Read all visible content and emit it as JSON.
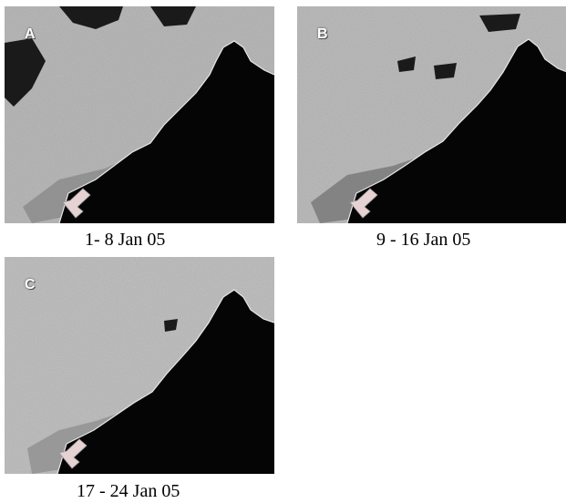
{
  "panels": [
    {
      "id": "A",
      "caption": "1- 8 Jan 05"
    },
    {
      "id": "B",
      "caption": "9 - 16 Jan 05"
    },
    {
      "id": "C",
      "caption": "17 - 24 Jan 05"
    }
  ],
  "colors": {
    "sea": "#b9b9b9",
    "land": "#050505",
    "cloud": "#1a1a1a",
    "arrow": "#e6d2d2",
    "plume": "#7a7a7a"
  }
}
